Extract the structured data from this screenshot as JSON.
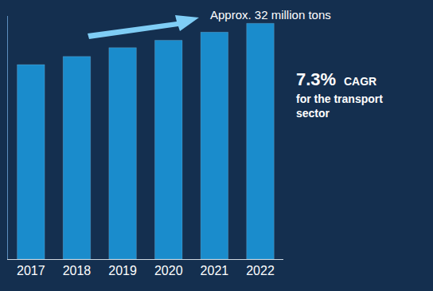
{
  "chart_data": {
    "type": "bar",
    "categories": [
      "2017",
      "2018",
      "2019",
      "2020",
      "2021",
      "2022"
    ],
    "values": [
      26.4,
      27.5,
      28.7,
      29.7,
      30.8,
      32
    ],
    "color": "#1a8ccc",
    "ylim": [
      0,
      33
    ],
    "tick_labels": "x",
    "annotations": [
      "Approx. 32 million tons",
      "7.3%",
      "CAGR",
      "for the transport sector"
    ]
  }
}
